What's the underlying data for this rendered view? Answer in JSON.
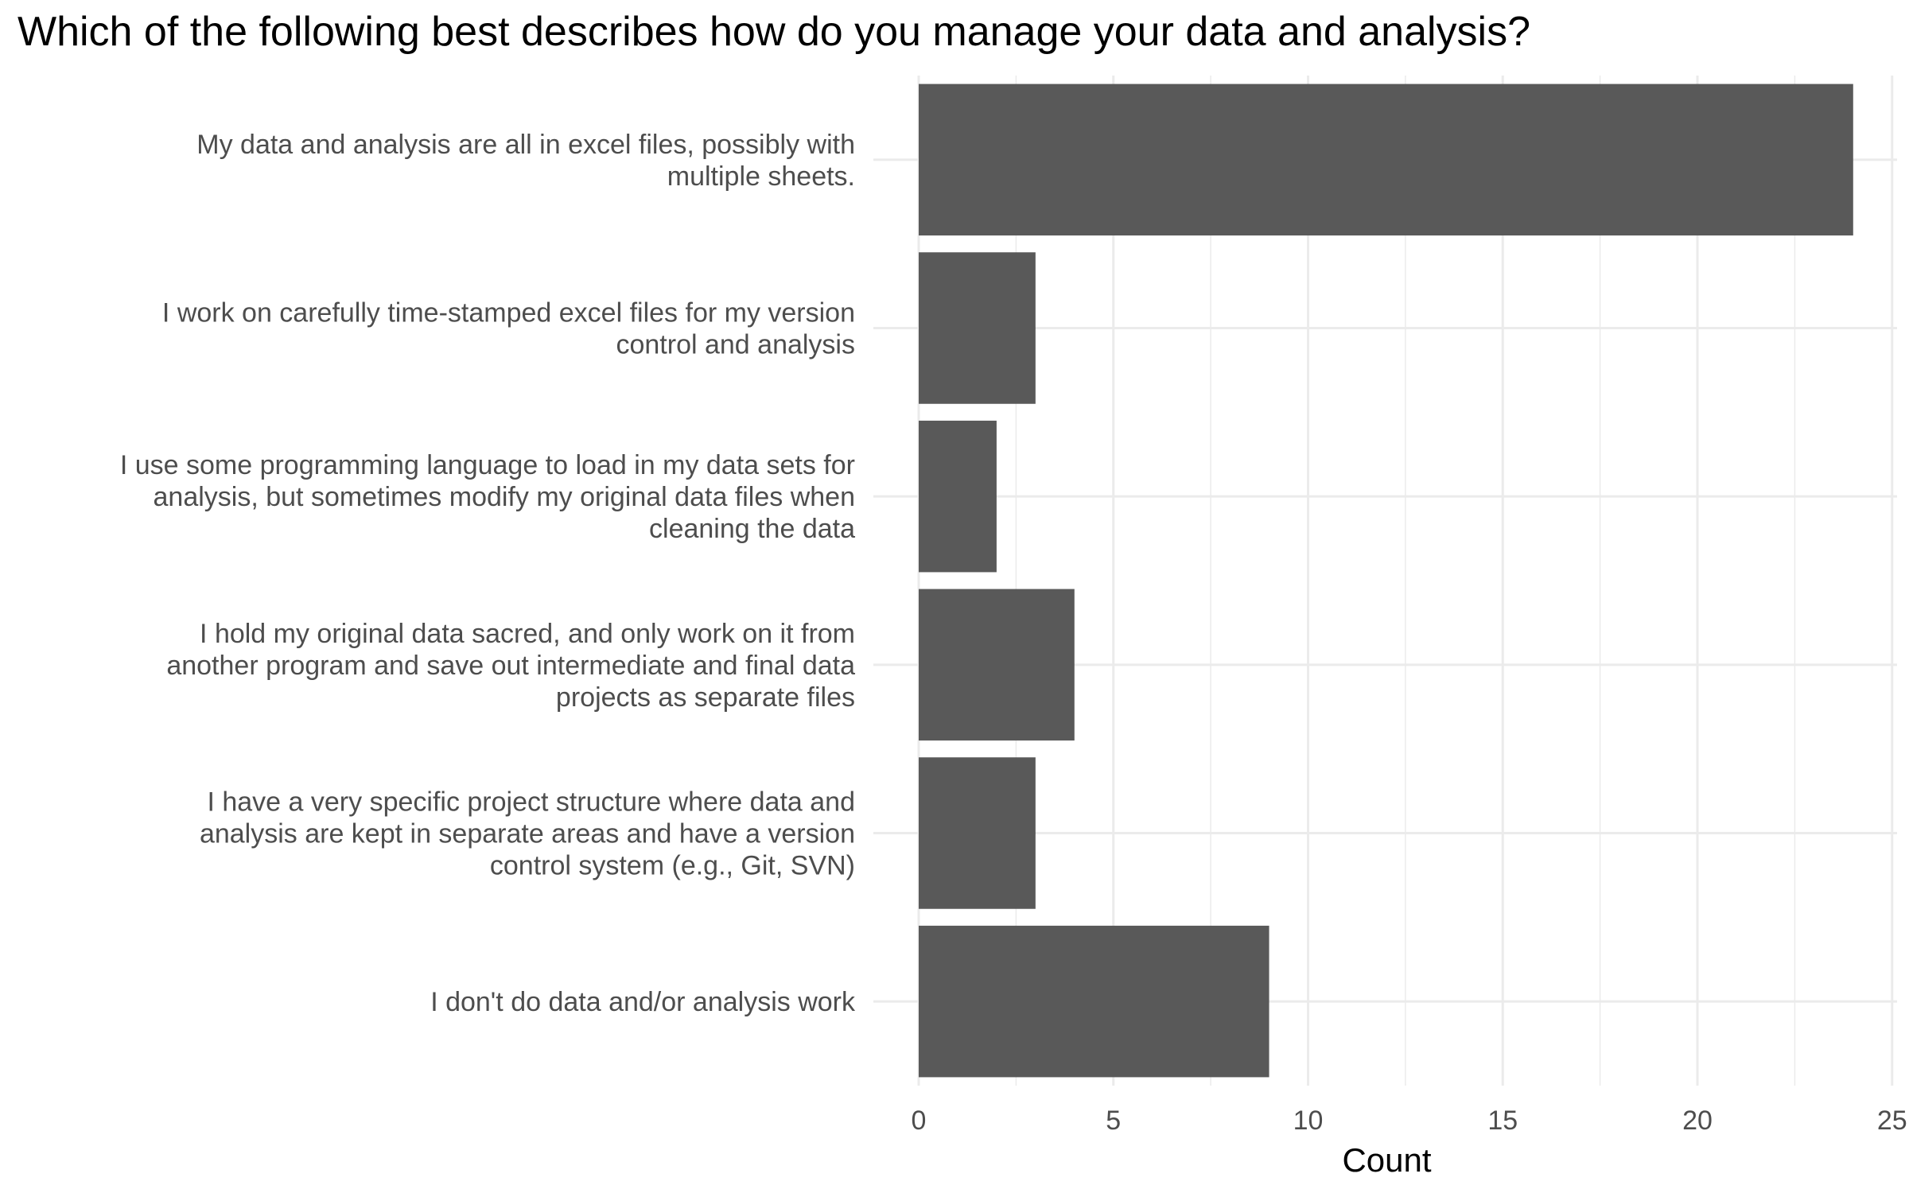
{
  "chart_data": {
    "type": "bar",
    "orientation": "horizontal",
    "title": "Which of the following best describes how do you manage your data and analysis?",
    "xlabel": "Count",
    "ylabel": "",
    "xlim": [
      0,
      25
    ],
    "x_ticks": [
      0,
      5,
      10,
      15,
      20,
      25
    ],
    "grid": true,
    "bar_color": "#595959",
    "grid_color": "#ebebeb",
    "categories": [
      [
        "My data and analysis are all in excel files, possibly with",
        "multiple sheets."
      ],
      [
        "I work on carefully time-stamped excel files for my version",
        "control and analysis"
      ],
      [
        "I use some programming language to load in my data sets for",
        "analysis, but sometimes modify my original data files when",
        "cleaning the data"
      ],
      [
        "I hold my original data sacred, and only work on it from",
        "another program and save out intermediate and final data",
        "projects as separate files"
      ],
      [
        "I have a very specific project structure where data and",
        "analysis are kept in separate areas and have a version",
        "control system (e.g., Git, SVN)"
      ],
      [
        "I don't do data and/or analysis work"
      ]
    ],
    "values": [
      24,
      3,
      2,
      4,
      3,
      9
    ]
  }
}
